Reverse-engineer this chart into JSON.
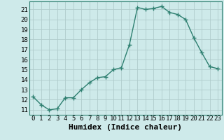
{
  "x": [
    0,
    1,
    2,
    3,
    4,
    5,
    6,
    7,
    8,
    9,
    10,
    11,
    12,
    13,
    14,
    15,
    16,
    17,
    18,
    19,
    20,
    21,
    22,
    23
  ],
  "y": [
    12.3,
    11.5,
    11.0,
    11.1,
    12.2,
    12.2,
    13.0,
    13.7,
    14.2,
    14.3,
    15.0,
    15.2,
    17.5,
    21.2,
    21.0,
    21.1,
    21.3,
    20.7,
    20.5,
    20.0,
    18.2,
    16.7,
    15.3,
    15.1
  ],
  "line_color": "#2e7f70",
  "marker": "+",
  "marker_size": 4,
  "bg_color": "#ceeaea",
  "grid_color": "#b0cccc",
  "xlabel": "Humidex (Indice chaleur)",
  "ylim": [
    10.5,
    21.8
  ],
  "xlim": [
    -0.5,
    23.5
  ],
  "yticks": [
    11,
    12,
    13,
    14,
    15,
    16,
    17,
    18,
    19,
    20,
    21
  ],
  "xticks": [
    0,
    1,
    2,
    3,
    4,
    5,
    6,
    7,
    8,
    9,
    10,
    11,
    12,
    13,
    14,
    15,
    16,
    17,
    18,
    19,
    20,
    21,
    22,
    23
  ],
  "tick_fontsize": 6.5,
  "xlabel_fontsize": 8,
  "spine_color": "#2e7f70",
  "linewidth": 1.0,
  "marker_linewidth": 1.0
}
